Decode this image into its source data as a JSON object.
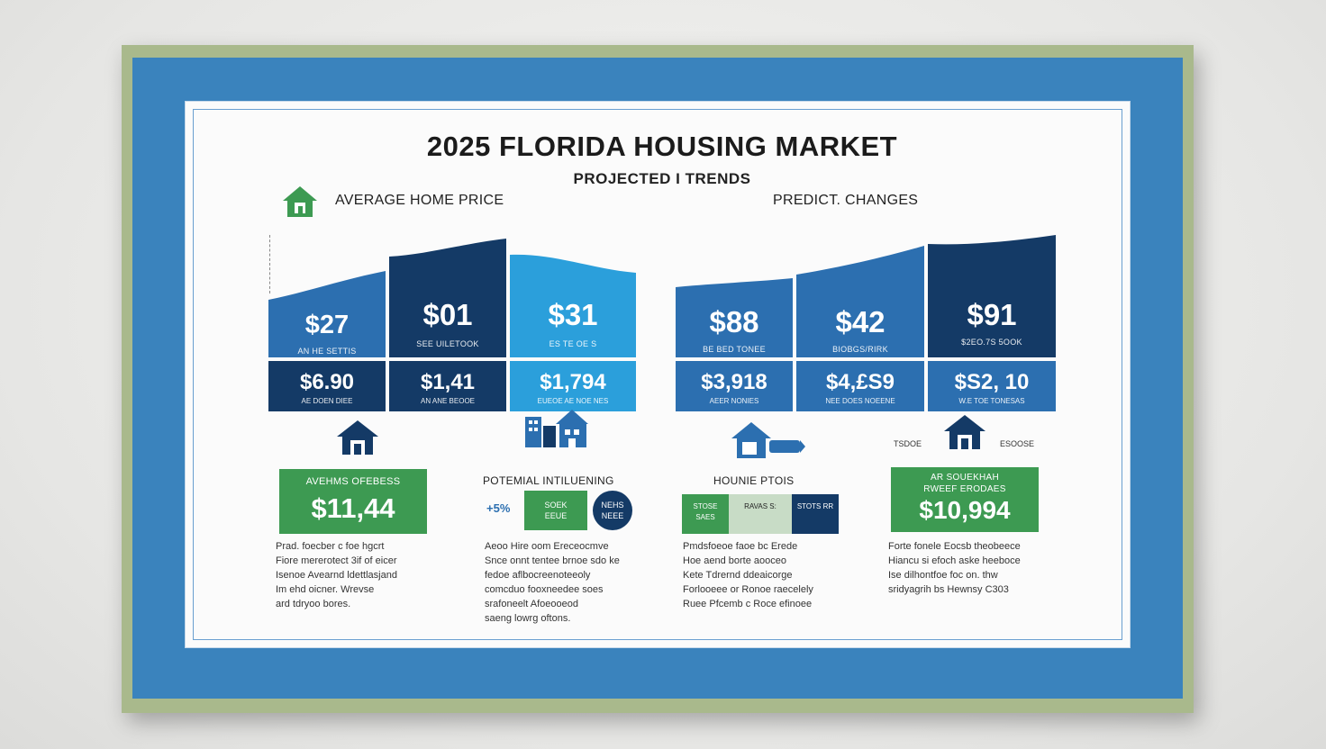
{
  "title": "2025 FLORIDA HOUSING MARKET",
  "subtitle": "PROJECTED I TRENDS",
  "left_section": {
    "label": "AVERAGE HOME PRICE",
    "panels": [
      {
        "value": "$27",
        "note": "AN HE SETTIS"
      },
      {
        "value": "$01",
        "note": "SEE UILETOOK"
      },
      {
        "value": "$31",
        "note": "ES TE OE S"
      }
    ],
    "cells": [
      {
        "value": "$6.90",
        "note": "AE DOEN DIEE"
      },
      {
        "value": "$1,41",
        "note": "AN ANE BEOOE"
      },
      {
        "value": "$1,794",
        "note": "EUEOE AE NOE NES"
      }
    ]
  },
  "right_section": {
    "label": "PREDICT. CHANGES",
    "panels": [
      {
        "value": "$88",
        "note": "BE BED TONEE"
      },
      {
        "value": "$42",
        "note": "BIOBGS/RIRK"
      },
      {
        "value": "$91",
        "note": "$2EO.7S 5OOK"
      }
    ],
    "cells": [
      {
        "value": "$3,918",
        "note": "AEER NONIES"
      },
      {
        "value": "$4,£S9",
        "note": "NEE DOES NOEENE"
      },
      {
        "value": "$S2, 10",
        "note": "W.E TOE TONESAS"
      }
    ]
  },
  "bottom": {
    "col1": {
      "card_title": "AVEHMS OFEBESS",
      "card_value": "$11,44",
      "text": [
        "Prad. foecber c foe hgcrt",
        "Fiore mererotect 3if of eicer",
        "Isenoe Avearnd ldettlasjand",
        "Im ehd oicner. Wrevse",
        "ard tdryoo bores."
      ]
    },
    "col2": {
      "heading": "POTEMIAL INTILUENING",
      "pct": "+5%",
      "box1": "SOEK EEUE",
      "box2": "NEHS NEEE",
      "text": [
        "Aeoo Hire oom Ereceocmve",
        "Snce onnt tentee brnoe sdo ke",
        "fedoe aflbocreenoteeoly",
        "comcduo fooxneedee soes",
        "srafoneelt Afoeooeod",
        "saeng lowrg oftons."
      ]
    },
    "col3": {
      "heading": "HOUNIE PTOIS",
      "box1": "STOSE SAES",
      "box2": "RAVAS S:",
      "box3": "STOTS RR",
      "text": [
        "Pmdsfoeoe faoe bc Erede",
        "Hoe aend borte aooceo",
        "Kete Tdrernd ddeaicorge",
        "Forlooeee or Ronoe raecelely",
        "Ruee Pfcemb c Roce efinoee"
      ]
    },
    "col4": {
      "tag_left": "TSDOE",
      "tag_right": "ESOOSE",
      "card_title_1": "AR SOUEKHAH",
      "card_title_2": "RWEEF ERODAES",
      "card_value": "$10,994",
      "text": [
        "Forte fonele Eocsb theobeece",
        "Hiancu si efoch aske heeboce",
        "Ise dilhontfoe foc on. thw",
        "sridyagrih bs Hewnsy C303"
      ]
    }
  },
  "colors": {
    "navy": "#143a66",
    "blue": "#2c6fb0",
    "bright_blue": "#2b9fdb",
    "green": "#3d9a52",
    "frame": "#a9b98c",
    "mat_border": "#3a83bd"
  }
}
